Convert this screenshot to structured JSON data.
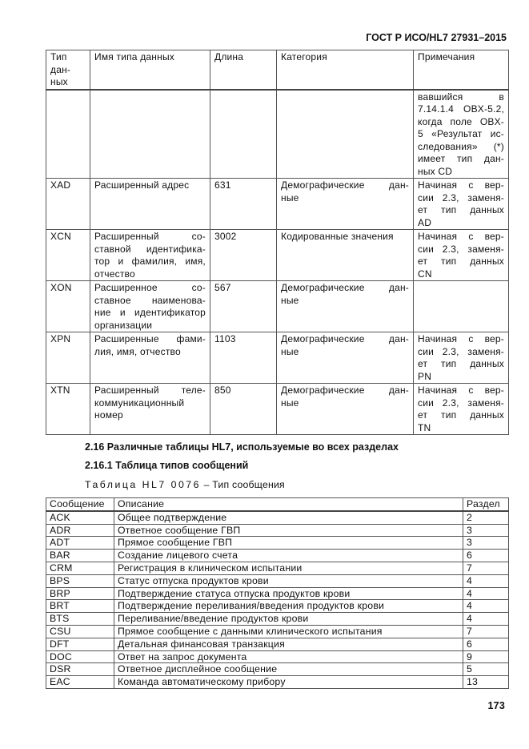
{
  "header": {
    "doc_code": "ГОСТ Р ИСО/HL7 27931–2015"
  },
  "table1": {
    "headers": [
      [
        "Тип",
        "дан-",
        "ных"
      ],
      [
        "Имя типа данных"
      ],
      [
        "Длина"
      ],
      [
        "Категория"
      ],
      [
        "Примечания"
      ]
    ],
    "rows": [
      {
        "code": [],
        "name": [],
        "length": "",
        "category": [],
        "notes": [
          "вавшийся в",
          "7.14.1.4 OBX-5.2,",
          "когда поле OBX-",
          "5 «Результат ис-",
          "следования» (*)",
          "имеет тип дан-",
          "ных CD"
        ]
      },
      {
        "code": [
          "XAD"
        ],
        "name": [
          "Расширенный адрес"
        ],
        "length": "631",
        "category": [
          "Демографические дан-",
          "ные"
        ],
        "notes": [
          "Начиная с вер-",
          "сии 2.3, заменя-",
          "ет тип данных",
          "AD"
        ]
      },
      {
        "code": [
          "XCN"
        ],
        "name": [
          "Расширенный со-",
          "ставной идентифика-",
          "тор и фамилия, имя,",
          "отчество"
        ],
        "length": "3002",
        "category": [
          "Кодированные значения"
        ],
        "notes": [
          "Начиная с вер-",
          "сии 2.3, заменя-",
          "ет тип данных",
          "CN"
        ]
      },
      {
        "code": [
          "XON"
        ],
        "name": [
          "Расширенное со-",
          "ставное наименова-",
          "ние и идентификатор",
          "организации"
        ],
        "length": "567",
        "category": [
          "Демографические дан-",
          "ные"
        ],
        "notes": []
      },
      {
        "code": [
          "XPN"
        ],
        "name": [
          "Расширенные фами-",
          "лия, имя, отчество"
        ],
        "length": "1103",
        "category": [
          "Демографические дан-",
          "ные"
        ],
        "notes": [
          "Начиная с вер-",
          "сии 2.3, заменя-",
          "ет тип данных",
          "PN"
        ]
      },
      {
        "code": [
          "XTN"
        ],
        "name": [
          "Расширенный теле-",
          "коммуникационный",
          "номер"
        ],
        "length": "850",
        "category": [
          "Демографические дан-",
          "ные"
        ],
        "notes": [
          "Начиная с вер-",
          "сии 2.3, заменя-",
          "ет тип данных",
          "TN"
        ]
      }
    ]
  },
  "section": {
    "title": "2.16 Различные таблицы HL7, используемые во всех разделах",
    "subtitle": "2.16.1 Таблица типов сообщений"
  },
  "caption": {
    "label": "Таблица HL7 0076",
    "rest": " – Тип сообщения"
  },
  "table2": {
    "headers": [
      "Сообщение",
      "Описание",
      "Раздел"
    ],
    "rows": [
      [
        "ACK",
        "Общее подтверждение",
        "2"
      ],
      [
        "ADR",
        "Ответное сообщение ГВП",
        "3"
      ],
      [
        "ADT",
        "Прямое сообщение ГВП",
        "3"
      ],
      [
        "BAR",
        "Создание лицевого счета",
        "6"
      ],
      [
        "CRM",
        "Регистрация в клиническом испытании",
        "7"
      ],
      [
        "BPS",
        "Статус отпуска продуктов крови",
        "4"
      ],
      [
        "BRP",
        "Подтверждение статуса отпуска продуктов крови",
        "4"
      ],
      [
        "BRT",
        "Подтверждение переливания/введения продуктов крови",
        "4"
      ],
      [
        "BTS",
        "Переливание/введение продуктов крови",
        "4"
      ],
      [
        "CSU",
        "Прямое сообщение с данными клинического испытания",
        "7"
      ],
      [
        "DFT",
        "Детальная финансовая транзакция",
        "6"
      ],
      [
        "DOC",
        "Ответ на запрос документа",
        "9"
      ],
      [
        "DSR",
        "Ответное дисплейное сообщение",
        "5"
      ],
      [
        "EAC",
        "Команда автоматическому прибору",
        "13"
      ]
    ]
  },
  "footer": {
    "page_number": "173"
  }
}
